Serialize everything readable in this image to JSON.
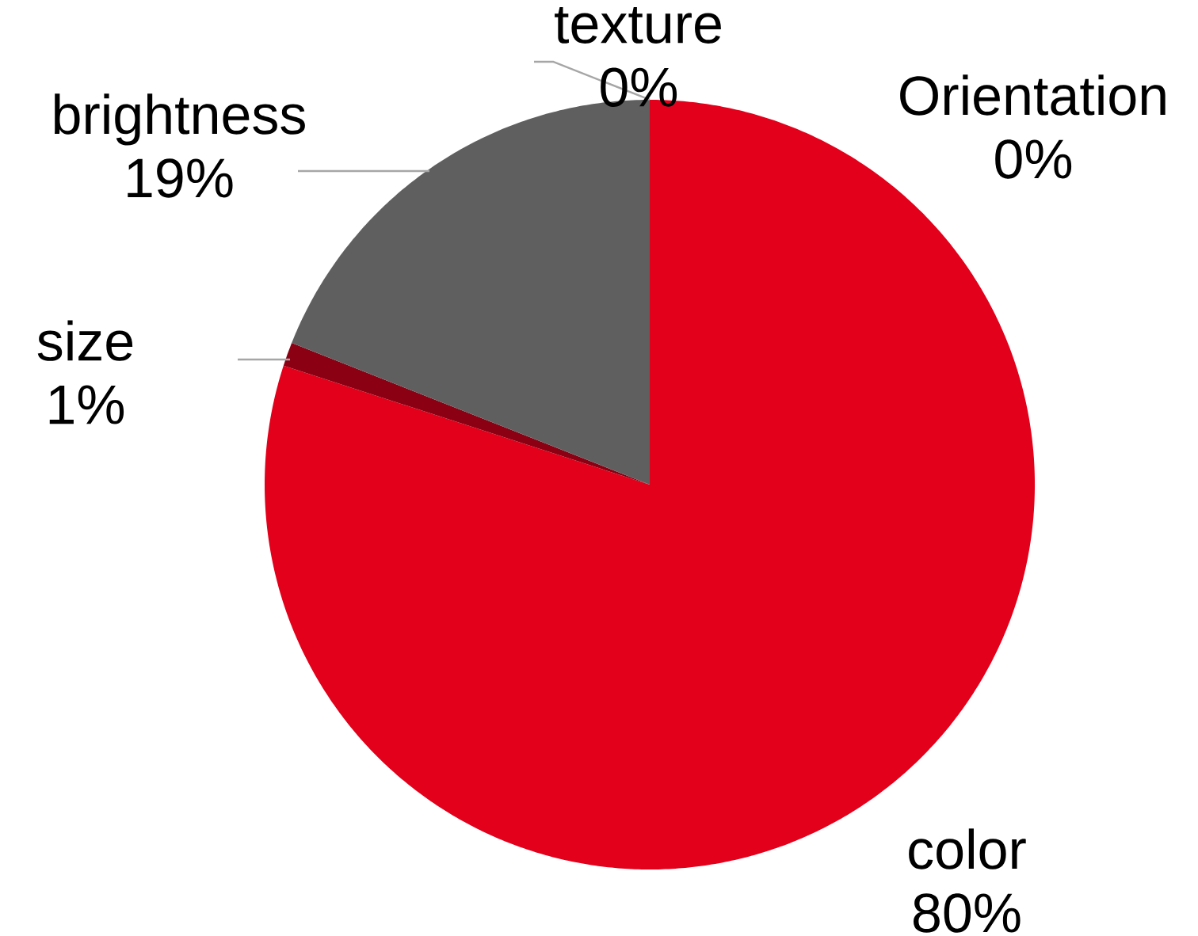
{
  "chart_data": {
    "type": "pie",
    "categories": [
      "Orientation",
      "color",
      "size",
      "brightness",
      "texture"
    ],
    "values": [
      0,
      80,
      1,
      19,
      0
    ],
    "colors": [
      "#8b0012",
      "#e3001b",
      "#8b0012",
      "#5f5f5f",
      "#8b0012"
    ],
    "value_labels": [
      "0%",
      "80%",
      "1%",
      "19%",
      "0%"
    ]
  }
}
